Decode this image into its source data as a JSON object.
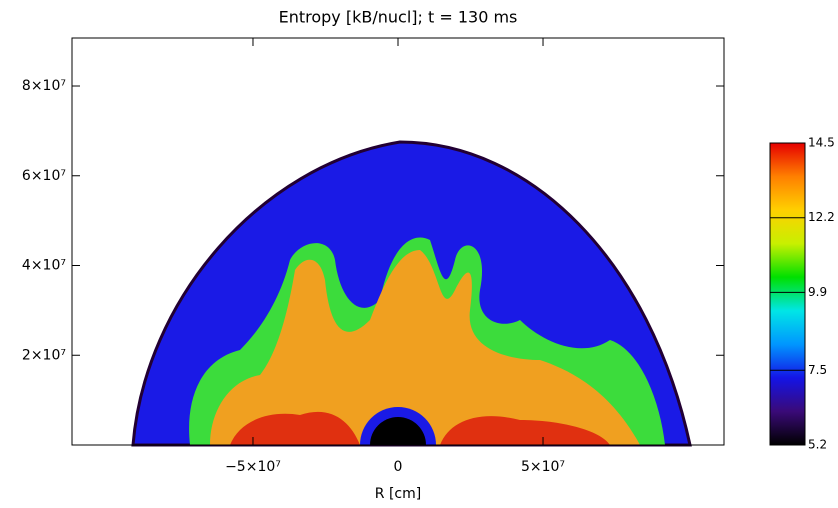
{
  "chart_data": {
    "type": "heatmap",
    "title": "Entropy [kB/nucl]; t = 130 ms",
    "x_label": "R [cm]",
    "xlim": [
      -112400000,
      112400000
    ],
    "xticks": [
      {
        "value": -50000000,
        "label": "−5×10⁷"
      },
      0,
      {
        "value": 50000000,
        "label": "5×10⁷"
      }
    ],
    "ylim": [
      0,
      90700000
    ],
    "yticks": [
      {
        "value": 20000000,
        "label": "2×10⁷"
      },
      {
        "value": 40000000,
        "label": "4×10⁷"
      },
      {
        "value": 60000000,
        "label": "6×10⁷"
      },
      {
        "value": 80000000,
        "label": "8×10⁷"
      }
    ],
    "colorbar": {
      "lim": [
        5.2,
        14.5
      ],
      "ticks": [
        5.2,
        7.5,
        9.9,
        12.2,
        14.5
      ],
      "colormap": [
        "#000000",
        "#3a0a78",
        "#1414e6",
        "#0096ff",
        "#00e6e6",
        "#00e000",
        "#c8f000",
        "#ffd000",
        "#ff8000",
        "#e60000"
      ]
    }
  }
}
